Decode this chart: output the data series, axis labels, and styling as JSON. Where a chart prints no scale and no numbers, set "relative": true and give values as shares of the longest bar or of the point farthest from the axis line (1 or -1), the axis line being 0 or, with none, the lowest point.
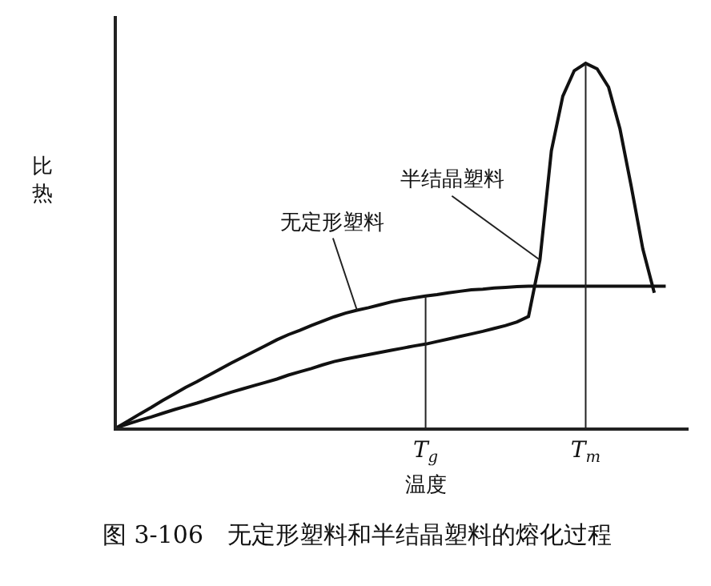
{
  "chart_data": {
    "type": "line",
    "relative": true,
    "title": "图 3-106　无定形塑料和半结晶塑料的熔化过程",
    "xlabel": "温度",
    "ylabel": "比热",
    "tick_labels": "x",
    "legend": false,
    "marker": "none",
    "line_style": "solid",
    "categories": [
      null,
      null,
      null,
      null,
      null,
      null,
      null,
      null,
      null,
      null,
      null,
      null,
      null,
      null,
      null,
      null,
      null,
      null,
      null,
      null,
      null,
      null,
      null,
      null,
      null,
      null,
      null,
      "T$_{g}$",
      null,
      null,
      null,
      null,
      null,
      null,
      null,
      null,
      null,
      null,
      null,
      null,
      null,
      "T$_{m}$",
      null,
      null,
      null,
      null,
      null,
      null,
      null
    ],
    "series": [
      {
        "name": "无定形塑料",
        "color": "#111111",
        "values": [
          0,
          0.018,
          0.037,
          0.055,
          0.074,
          0.092,
          0.11,
          0.126,
          0.143,
          0.16,
          0.177,
          0.193,
          0.209,
          0.225,
          0.241,
          0.255,
          0.267,
          0.28,
          0.292,
          0.304,
          0.314,
          0.322,
          0.329,
          0.337,
          0.345,
          0.351,
          0.356,
          0.361,
          0.365,
          0.37,
          0.374,
          0.378,
          0.38,
          0.383,
          0.385,
          0.387,
          0.388,
          0.388,
          0.388,
          0.388,
          0.388,
          0.388,
          0.388,
          0.388,
          0.388,
          0.388,
          0.388,
          0.388,
          0.388
        ]
      },
      {
        "name": "半结晶塑料",
        "color": "#111111",
        "values": [
          0,
          0.01,
          0.02,
          0.029,
          0.039,
          0.049,
          0.058,
          0.067,
          0.077,
          0.087,
          0.097,
          0.106,
          0.115,
          0.124,
          0.133,
          0.144,
          0.153,
          0.162,
          0.172,
          0.181,
          0.188,
          0.194,
          0.2,
          0.206,
          0.212,
          0.218,
          0.224,
          0.229,
          0.236,
          0.243,
          0.25,
          0.257,
          0.264,
          0.272,
          0.28,
          0.29,
          0.305,
          0.46,
          0.76,
          0.91,
          0.98,
          1,
          0.985,
          0.935,
          0.82,
          0.66,
          0.49,
          0.37,
          null
        ]
      }
    ],
    "ref_lines": [
      {
        "axis": "x",
        "value": "T$_{g}$"
      },
      {
        "axis": "x",
        "value": "T$_{m}$"
      }
    ]
  }
}
